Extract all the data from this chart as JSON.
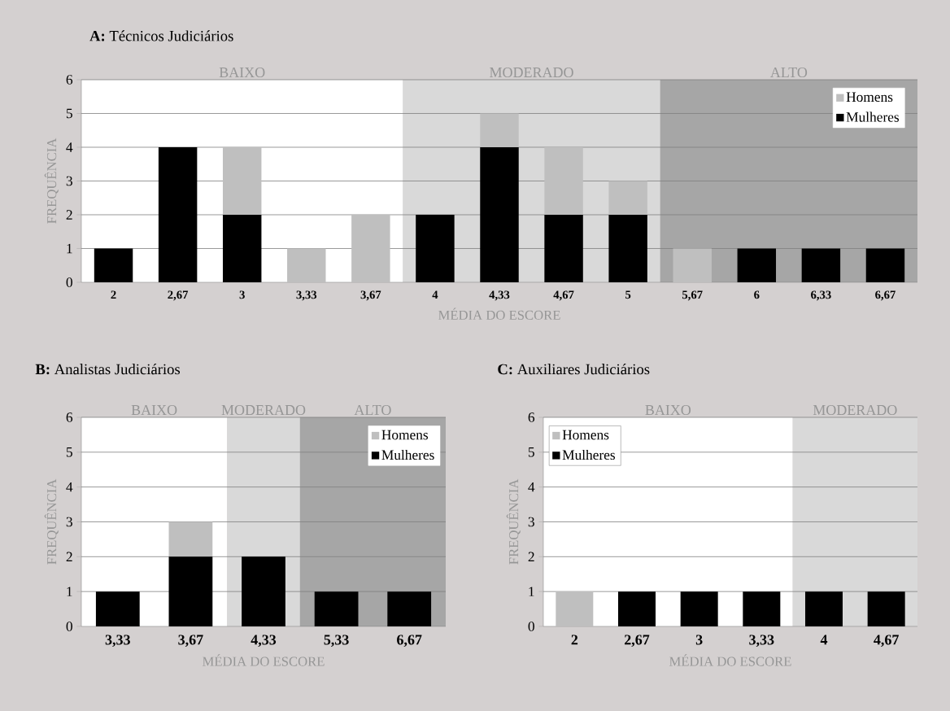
{
  "chart_data": [
    {
      "type": "bar",
      "title": "**A:** Técnicos Judiciários",
      "xlabel": "MÉDIA DO ESCORE",
      "ylabel": "FREQUÊNCIA",
      "categories": [
        "2",
        "2,67",
        "3",
        "3,33",
        "3,67",
        "4",
        "4,33",
        "4,67",
        "5",
        "5,67",
        "6",
        "6,33",
        "6,67"
      ],
      "series": [
        {
          "name": "Mulheres",
          "color": "#000000",
          "values": [
            1,
            4,
            2,
            0,
            0,
            2,
            4,
            2,
            2,
            0,
            1,
            1,
            1
          ]
        },
        {
          "name": "Homens",
          "color": "#bfbfbf",
          "values": [
            0,
            0,
            2,
            1,
            2,
            0,
            1,
            2,
            1,
            1,
            0,
            0,
            0
          ]
        }
      ],
      "stacked": true,
      "ylim": [
        0,
        6
      ],
      "yticks": [
        0,
        1,
        2,
        3,
        4,
        5,
        6
      ],
      "grid": "y",
      "legend": "top right",
      "bands": [
        {
          "axis": "x",
          "from": "2",
          "to": "3,67",
          "label": "BAIXO",
          "color": "#ffffff"
        },
        {
          "axis": "x",
          "from": "4",
          "to": "5",
          "label": "MODERADO",
          "color": "#d9d9d9"
        },
        {
          "axis": "x",
          "from": "5,67",
          "to": "6,67",
          "label": "ALTO",
          "color": "#a6a6a6"
        }
      ]
    },
    {
      "type": "bar",
      "title": "**B:** Analistas Judiciários",
      "xlabel": "MÉDIA DO ESCORE",
      "ylabel": "FREQUÊNCIA",
      "categories": [
        "3,33",
        "3,67",
        "4,33",
        "5,33",
        "6,67"
      ],
      "series": [
        {
          "name": "Mulheres",
          "color": "#000000",
          "values": [
            1,
            2,
            2,
            1,
            1
          ]
        },
        {
          "name": "Homens",
          "color": "#bfbfbf",
          "values": [
            0,
            1,
            0,
            0,
            0
          ]
        }
      ],
      "stacked": true,
      "ylim": [
        0,
        6
      ],
      "yticks": [
        0,
        1,
        2,
        3,
        4,
        5,
        6
      ],
      "grid": "y",
      "legend": "top right",
      "bands": [
        {
          "axis": "x",
          "from": "3,33",
          "to": "3,67",
          "label": "BAIXO",
          "color": "#ffffff"
        },
        {
          "axis": "x",
          "from": "4,33",
          "to": "4,33",
          "label": "MODERADO",
          "color": "#d9d9d9"
        },
        {
          "axis": "x",
          "from": "5,33",
          "to": "6,67",
          "label": "ALTO",
          "color": "#a6a6a6"
        }
      ]
    },
    {
      "type": "bar",
      "title": "**C:** Auxiliares Judiciários",
      "xlabel": "MÉDIA DO ESCORE",
      "ylabel": "FREQUÊNCIA",
      "categories": [
        "2",
        "2,67",
        "3",
        "3,33",
        "4",
        "4,67"
      ],
      "series": [
        {
          "name": "Mulheres",
          "color": "#000000",
          "values": [
            0,
            1,
            1,
            1,
            1,
            1
          ]
        },
        {
          "name": "Homens",
          "color": "#bfbfbf",
          "values": [
            1,
            0,
            0,
            0,
            0,
            0
          ]
        }
      ],
      "stacked": true,
      "ylim": [
        0,
        6
      ],
      "yticks": [
        0,
        1,
        2,
        3,
        4,
        5,
        6
      ],
      "grid": "y",
      "legend": "top left",
      "bands": [
        {
          "axis": "x",
          "from": "2",
          "to": "3,33",
          "label": "BAIXO",
          "color": "#ffffff"
        },
        {
          "axis": "x",
          "from": "4",
          "to": "4,67",
          "label": "MODERADO",
          "color": "#d9d9d9"
        }
      ]
    }
  ]
}
